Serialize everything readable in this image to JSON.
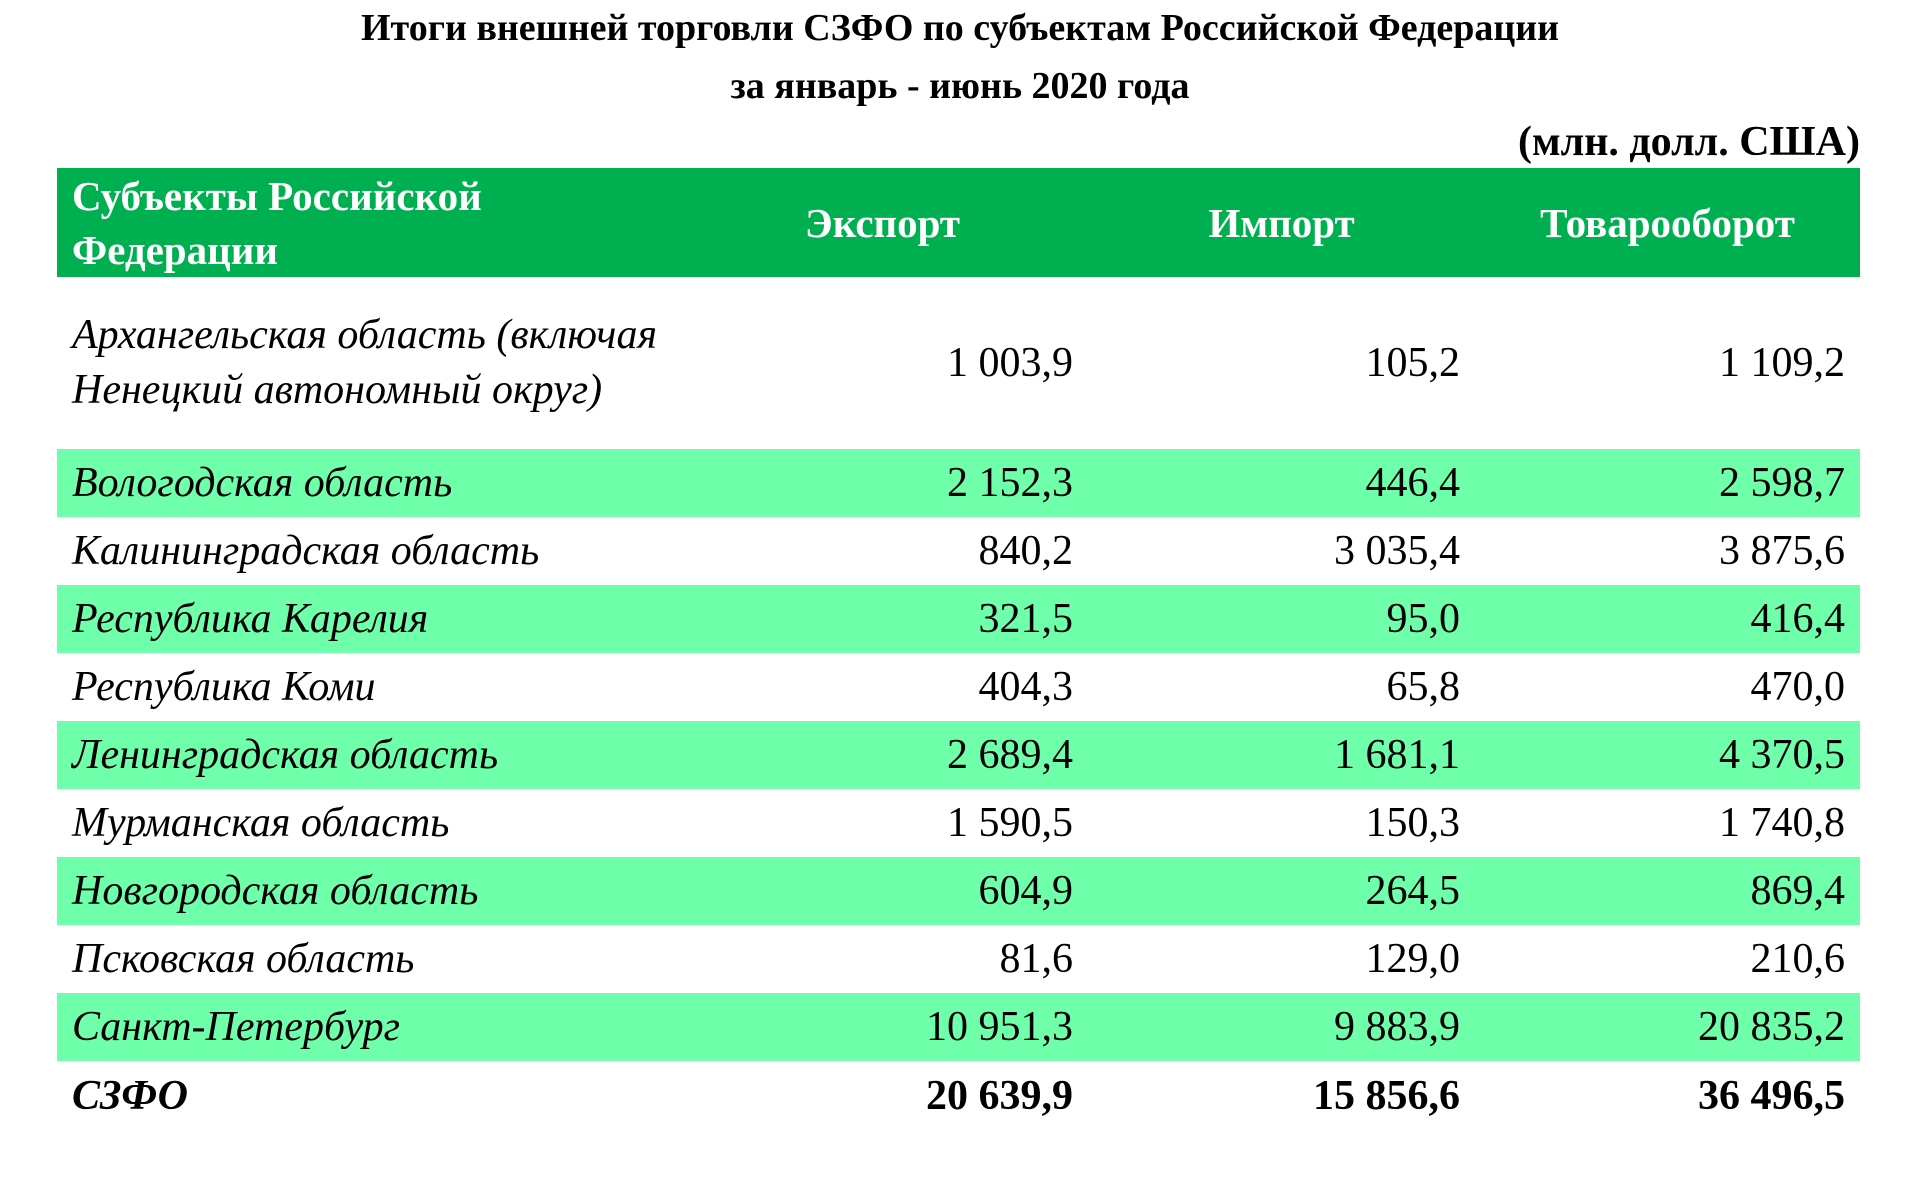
{
  "header": {
    "title_lines": [
      "Итоги внешней торговли СЗФО по субъектам Российской Федерации",
      "за январь - июнь 2020 года"
    ],
    "unit": "(млн. долл. США)"
  },
  "table": {
    "columns": [
      "Субъекты  Российской Федерации",
      "Экспорт",
      "Импорт",
      "Товарооборот"
    ],
    "rows": [
      [
        "Архангельская область (включая Ненецкий автономный округ)",
        "1 003,9",
        "105,2",
        "1 109,2"
      ],
      [
        "Вологодская область",
        "2 152,3",
        "446,4",
        "2 598,7"
      ],
      [
        "Калининградская область",
        "840,2",
        "3 035,4",
        "3 875,6"
      ],
      [
        "Республика Карелия",
        "321,5",
        "95,0",
        "416,4"
      ],
      [
        "Республика Коми",
        "404,3",
        "65,8",
        "470,0"
      ],
      [
        "Ленинградская область",
        "2 689,4",
        "1 681,1",
        "4 370,5"
      ],
      [
        "Мурманская область",
        "1 590,5",
        "150,3",
        "1 740,8"
      ],
      [
        "Новгородская область",
        "604,9",
        "264,5",
        "869,4"
      ],
      [
        "Псковская область",
        "81,6",
        "129,0",
        "210,6"
      ],
      [
        "Санкт-Петербург",
        "10 951,3",
        "9 883,9",
        "20 835,2"
      ]
    ],
    "total": [
      "СЗФО",
      "20 639,9",
      "15 856,6",
      "36 496,5"
    ]
  }
}
